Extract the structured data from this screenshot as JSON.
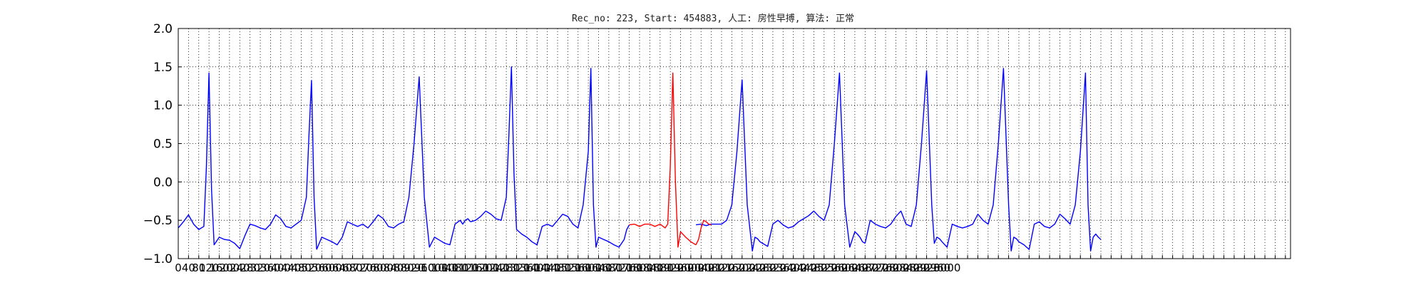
{
  "chart_data": {
    "type": "line",
    "title": "Rec_no: 223, Start: 454883, 人工: 房性早搏, 算法: 正常",
    "xlabel": "",
    "ylabel": "",
    "xlim": [
      0,
      4340
    ],
    "ylim": [
      -1.0,
      2.0
    ],
    "grid": true,
    "grid_style": "dotted",
    "y_ticks": [
      -1.0,
      -0.5,
      0.0,
      0.5,
      1.0,
      1.5,
      2.0
    ],
    "y_tick_labels": [
      "−1.0",
      "−0.5",
      "0.0",
      "0.5",
      "1.0",
      "1.5",
      "2.0"
    ],
    "x_ticks": [
      0,
      40,
      80,
      120,
      160,
      200,
      240,
      280,
      320,
      360,
      400,
      440,
      480,
      520,
      560,
      600,
      640,
      680,
      720,
      760,
      800,
      840,
      880,
      920,
      960,
      1000,
      1040,
      1080,
      1120,
      1160,
      1200,
      1240,
      1280,
      1320,
      1360,
      1400,
      1440,
      1480,
      1520,
      1560,
      1600,
      1640,
      1680,
      1720,
      1760,
      1800,
      1840,
      1880,
      1920,
      1960,
      2000,
      2040,
      2080,
      2120,
      2160,
      2200,
      2240,
      2280,
      2320,
      2360,
      2400,
      2440,
      2480,
      2520,
      2560,
      2600,
      2640,
      2680,
      2720,
      2760,
      2800,
      2840,
      2880,
      2920,
      2960,
      3000,
      3040,
      3080,
      3120,
      3160,
      3200,
      3240,
      3280,
      3320,
      3360,
      3400,
      3440,
      3480,
      3520,
      3560,
      3600,
      3640,
      3680,
      3720,
      3760,
      3800,
      3840,
      3880,
      3920,
      3960,
      4000,
      4040,
      4080,
      4120,
      4160,
      4200,
      4240,
      4280,
      4320
    ],
    "x_tick_labels_visible": [
      "0",
      "40",
      "80",
      "120",
      "160",
      "200",
      "240",
      "280",
      "320",
      "360",
      "400",
      "440",
      "480",
      "520",
      "560",
      "600",
      "640",
      "680",
      "720",
      "760",
      "800",
      "840",
      "880",
      "920",
      "960",
      "1000",
      "1040",
      "1080",
      "1120",
      "1160",
      "1200",
      "1240",
      "1280",
      "1320",
      "1360",
      "1400",
      "1440",
      "1480",
      "1520",
      "1560",
      "1600",
      "1640",
      "1680",
      "1720",
      "1760",
      "1800",
      "1840",
      "1880",
      "1920",
      "1960",
      "2000",
      "2040",
      "2080",
      "2120",
      "2160",
      "2200",
      "2240",
      "2280",
      "2320",
      "2360",
      "2400",
      "2440",
      "2480",
      "2520",
      "2560",
      "2600",
      "2640",
      "2680",
      "2720",
      "2760",
      "2800",
      "2840",
      "2880",
      "2920",
      "2960",
      "3000"
    ],
    "series": [
      {
        "color": "#0000ff",
        "x": [
          0,
          40,
          80,
          100,
          110,
          120,
          130,
          140,
          150,
          170,
          200,
          240,
          280,
          320,
          360,
          400,
          440,
          480,
          520,
          520,
          560,
          600,
          620,
          640,
          660,
          680,
          700,
          720,
          740,
          760,
          790,
          800,
          810,
          820,
          840,
          880,
          920,
          960,
          1000,
          1040,
          1080,
          1120,
          1160,
          1200,
          1240,
          1280,
          1320,
          1360,
          1400,
          1440,
          1480,
          1520,
          1560,
          1600,
          1640,
          1660,
          1680,
          1700,
          1720,
          1740,
          1760,
          1800,
          1840,
          1880,
          1920,
          1960,
          2000,
          2040,
          2080,
          2120,
          2160,
          2180,
          2200,
          2220,
          2240,
          2260,
          2280,
          2320,
          2360,
          2400,
          2440,
          2480,
          2520,
          2560,
          2600,
          2640,
          2680,
          2700,
          2720,
          2740,
          2760,
          2780,
          2800,
          2840,
          2880,
          2920,
          2960,
          3000
        ],
        "y": [
          -0.55,
          -0.43,
          -0.6,
          -0.55,
          0.6,
          1.42,
          0.2,
          -0.82,
          -0.72,
          -0.75,
          -0.87,
          -0.55,
          -0.6,
          -0.6,
          -0.43,
          -0.58,
          -0.58,
          0.6,
          1.32,
          -0.9,
          -0.72,
          -0.8,
          -0.75,
          -0.5,
          -0.55,
          -0.58,
          -0.55,
          -0.6,
          -0.48,
          -0.43,
          -0.55,
          -0.58,
          -0.5,
          0.5,
          1.37,
          -0.85,
          -0.72,
          -0.82,
          -0.5,
          -0.55,
          -0.48,
          -0.5,
          -0.38,
          -0.45,
          1.5,
          -0.62,
          -0.72,
          -0.82,
          -0.55,
          -0.58,
          -0.42,
          -0.55,
          1.48,
          -0.85,
          -0.72,
          -0.85,
          -0.75,
          -0.55,
          -0.55,
          -0.6,
          -0.45,
          -0.55,
          -0.58,
          -0.55,
          -0.52,
          -0.45,
          0.5,
          1.33,
          -0.9,
          -0.72,
          -0.8,
          -0.55,
          -0.6,
          -0.5,
          -0.58,
          -0.48,
          -0.38,
          -0.45,
          1.42,
          -0.85,
          -0.65,
          -0.8,
          -0.5,
          -0.58,
          -0.55,
          -0.4,
          -0.55,
          1.45,
          -0.8,
          -0.72,
          -0.85,
          -0.55,
          -0.6,
          -0.55,
          -0.42,
          -0.5,
          1.48,
          -0.9
        ],
        "segments": [
          {
            "x": [
              0,
              20,
              40,
              60,
              80,
              100,
              110,
              120,
              130,
              140,
              160,
              180,
              200,
              220,
              240,
              260,
              280,
              300,
              320,
              340,
              360,
              380,
              400,
              420,
              440,
              460,
              480,
              500,
              510,
              520,
              530,
              540
            ],
            "y": [
              -0.6,
              -0.52,
              -0.43,
              -0.55,
              -0.62,
              -0.58,
              0.2,
              1.42,
              -0.1,
              -0.82,
              -0.72,
              -0.75,
              -0.76,
              -0.8,
              -0.87,
              -0.7,
              -0.55,
              -0.57,
              -0.6,
              -0.62,
              -0.55,
              -0.43,
              -0.48,
              -0.58,
              -0.6,
              -0.55,
              -0.5,
              -0.2,
              0.6,
              1.32,
              -0.2,
              -0.88
            ]
          },
          {
            "x": [
              540,
              560,
              580,
              600,
              620,
              640,
              660,
              680,
              700,
              720,
              740,
              760,
              780,
              800,
              820,
              840,
              860,
              880,
              900,
              920,
              940,
              960,
              980,
              1000,
              1020,
              1040,
              1060,
              1080,
              1100,
              1110,
              1120,
              1130,
              1140
            ],
            "y": [
              -0.88,
              -0.72,
              -0.75,
              -0.78,
              -0.82,
              -0.72,
              -0.52,
              -0.55,
              -0.58,
              -0.55,
              -0.6,
              -0.52,
              -0.43,
              -0.48,
              -0.58,
              -0.6,
              -0.55,
              -0.52,
              -0.2,
              0.5,
              1.37,
              -0.2,
              -0.85,
              -0.72,
              -0.76,
              -0.8,
              -0.82,
              -0.55,
              -0.5,
              -0.55,
              -0.5,
              -0.48,
              -0.52
            ]
          },
          {
            "x": [
              1140,
              1160,
              1180,
              1200,
              1220,
              1240,
              1260,
              1280,
              1290,
              1300,
              1310,
              1320,
              1340,
              1360,
              1380,
              1400,
              1420,
              1440,
              1460,
              1480,
              1500,
              1520,
              1540,
              1560,
              1580,
              1600,
              1610,
              1620,
              1630,
              1640
            ],
            "y": [
              -0.52,
              -0.5,
              -0.45,
              -0.38,
              -0.42,
              -0.48,
              -0.5,
              -0.2,
              0.6,
              1.5,
              0.1,
              -0.62,
              -0.68,
              -0.72,
              -0.78,
              -0.82,
              -0.58,
              -0.55,
              -0.58,
              -0.5,
              -0.42,
              -0.45,
              -0.55,
              -0.6,
              -0.3,
              0.4,
              1.48,
              -0.3,
              -0.85,
              -0.72
            ]
          },
          {
            "x": [
              1640,
              1660,
              1680,
              1700,
              1720,
              1740,
              1750,
              1760
            ],
            "y": [
              -0.72,
              -0.75,
              -0.78,
              -0.82,
              -0.85,
              -0.75,
              -0.62,
              -0.56
            ]
          },
          {
            "x": [
              2020,
              2040,
              2060,
              2080,
              2100,
              2120,
              2140,
              2160,
              2180,
              2200,
              2220,
              2240,
              2250,
              2260,
              2270,
              2280,
              2300,
              2320,
              2340,
              2360,
              2380,
              2400,
              2420,
              2440,
              2460,
              2480,
              2500,
              2520,
              2540,
              2560,
              2580,
              2600,
              2620,
              2640,
              2650,
              2660,
              2670,
              2680
            ],
            "y": [
              -0.56,
              -0.55,
              -0.57,
              -0.55,
              -0.55,
              -0.55,
              -0.5,
              -0.3,
              0.4,
              1.33,
              -0.3,
              -0.9,
              -0.72,
              -0.74,
              -0.78,
              -0.8,
              -0.84,
              -0.55,
              -0.5,
              -0.56,
              -0.6,
              -0.58,
              -0.52,
              -0.48,
              -0.44,
              -0.38,
              -0.45,
              -0.5,
              -0.3,
              0.5,
              1.42,
              -0.3,
              -0.85,
              -0.65,
              -0.68,
              -0.72,
              -0.78,
              -0.8
            ]
          },
          {
            "x": [
              2680,
              2700,
              2720,
              2740,
              2760,
              2780,
              2800,
              2820,
              2840,
              2860,
              2880,
              2900,
              2920,
              2940,
              2950,
              2960,
              2970,
              2980,
              3000,
              3020,
              3040,
              3060,
              3080,
              3100,
              3120,
              3140,
              3160,
              3180,
              3200,
              3220,
              3240,
              3250,
              3260,
              3270,
              3280,
              3300,
              3320,
              3340,
              3360,
              3380,
              3400,
              3420,
              3440,
              3460,
              3480,
              3500,
              3520,
              3540,
              3550,
              3560,
              3570,
              3580,
              3590,
              3600
            ],
            "y": [
              -0.8,
              -0.5,
              -0.55,
              -0.58,
              -0.6,
              -0.55,
              -0.45,
              -0.38,
              -0.55,
              -0.58,
              -0.3,
              0.5,
              1.45,
              -0.3,
              -0.8,
              -0.72,
              -0.74,
              -0.78,
              -0.85,
              -0.55,
              -0.58,
              -0.6,
              -0.58,
              -0.55,
              -0.42,
              -0.5,
              -0.55,
              -0.3,
              0.5,
              1.48,
              -0.3,
              -0.9,
              -0.72,
              -0.74,
              -0.78,
              -0.82,
              -0.88,
              -0.55,
              -0.52,
              -0.58,
              -0.6,
              -0.55,
              -0.42,
              -0.48,
              -0.55,
              -0.3,
              0.4,
              1.42,
              -0.3,
              -0.9,
              -0.72,
              -0.68,
              -0.72,
              -0.75
            ]
          }
        ]
      },
      {
        "color": "#ff0000",
        "segments": [
          {
            "x": [
              1760,
              1780,
              1800,
              1820,
              1840,
              1860,
              1880,
              1900,
              1910,
              1920,
              1930,
              1940,
              1950,
              1960,
              1980,
              2000,
              2020
            ],
            "y": [
              -0.56,
              -0.55,
              -0.58,
              -0.55,
              -0.55,
              -0.58,
              -0.55,
              -0.6,
              -0.55,
              0.2,
              1.42,
              0.0,
              -0.85,
              -0.65,
              -0.72,
              -0.78,
              -0.82
            ]
          },
          {
            "x": [
              2020,
              2030,
              2040,
              2050,
              2060,
              2070,
              2080
            ],
            "y": [
              -0.82,
              -0.75,
              -0.6,
              -0.5,
              -0.52,
              -0.55,
              -0.56
            ]
          }
        ]
      }
    ]
  }
}
